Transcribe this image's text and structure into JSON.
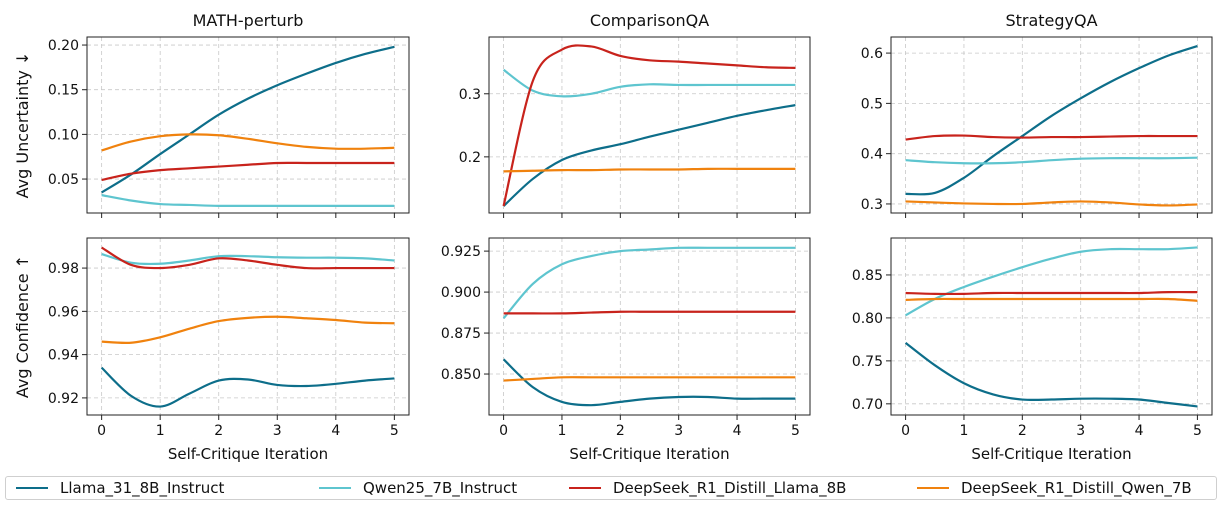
{
  "chart_data": [
    {
      "type": "line",
      "title": "MATH-perturb",
      "ylabel": "Avg Uncertainty ↓",
      "xlabel": "",
      "x": [
        0,
        0.5,
        1,
        1.5,
        2,
        2.5,
        3,
        3.5,
        4,
        4.5,
        5
      ],
      "xlim": [
        -0.25,
        5.25
      ],
      "ylim": [
        0.012,
        0.209
      ],
      "xticks": [],
      "yticks": [
        "0.05",
        "0.10",
        "0.15",
        "0.20"
      ],
      "grid": true,
      "series": [
        {
          "name": "Llama_31_8B_Instruct",
          "values": [
            0.035,
            0.055,
            0.078,
            0.1,
            0.122,
            0.14,
            0.155,
            0.168,
            0.18,
            0.19,
            0.198
          ]
        },
        {
          "name": "Qwen25_7B_Instruct",
          "values": [
            0.032,
            0.026,
            0.022,
            0.021,
            0.02,
            0.02,
            0.02,
            0.02,
            0.02,
            0.02,
            0.02
          ]
        },
        {
          "name": "DeepSeek_R1_Distill_Llama_8B",
          "values": [
            0.049,
            0.056,
            0.06,
            0.062,
            0.064,
            0.066,
            0.068,
            0.068,
            0.068,
            0.068,
            0.068
          ]
        },
        {
          "name": "DeepSeek_R1_Distill_Qwen_7B",
          "values": [
            0.082,
            0.092,
            0.098,
            0.1,
            0.099,
            0.095,
            0.09,
            0.086,
            0.084,
            0.084,
            0.085
          ]
        }
      ]
    },
    {
      "type": "line",
      "title": "ComparisonQA",
      "ylabel": "",
      "xlabel": "",
      "x": [
        0,
        0.5,
        1,
        1.5,
        2,
        2.5,
        3,
        3.5,
        4,
        4.5,
        5
      ],
      "xlim": [
        -0.25,
        5.25
      ],
      "ylim": [
        0.111,
        0.39
      ],
      "xticks": [],
      "yticks": [
        "0.2",
        "0.3"
      ],
      "grid": true,
      "series": [
        {
          "name": "Llama_31_8B_Instruct",
          "values": [
            0.122,
            0.165,
            0.195,
            0.21,
            0.22,
            0.232,
            0.243,
            0.254,
            0.265,
            0.274,
            0.282
          ]
        },
        {
          "name": "Qwen25_7B_Instruct",
          "values": [
            0.338,
            0.305,
            0.296,
            0.3,
            0.311,
            0.315,
            0.314,
            0.314,
            0.314,
            0.314,
            0.314
          ]
        },
        {
          "name": "DeepSeek_R1_Distill_Llama_8B",
          "values": [
            0.122,
            0.32,
            0.37,
            0.375,
            0.36,
            0.353,
            0.351,
            0.348,
            0.345,
            0.342,
            0.341
          ]
        },
        {
          "name": "DeepSeek_R1_Distill_Qwen_7B",
          "values": [
            0.177,
            0.178,
            0.179,
            0.179,
            0.18,
            0.18,
            0.18,
            0.181,
            0.181,
            0.181,
            0.181
          ]
        }
      ]
    },
    {
      "type": "line",
      "title": "StrategyQA",
      "ylabel": "",
      "xlabel": "",
      "x": [
        0,
        0.5,
        1,
        1.5,
        2,
        2.5,
        3,
        3.5,
        4,
        4.5,
        5
      ],
      "xlim": [
        -0.25,
        5.25
      ],
      "ylim": [
        0.282,
        0.632
      ],
      "xticks": [],
      "yticks": [
        "0.3",
        "0.4",
        "0.5",
        "0.6"
      ],
      "grid": true,
      "series": [
        {
          "name": "Llama_31_8B_Instruct",
          "values": [
            0.32,
            0.322,
            0.352,
            0.395,
            0.435,
            0.475,
            0.51,
            0.542,
            0.57,
            0.595,
            0.614
          ]
        },
        {
          "name": "Qwen25_7B_Instruct",
          "values": [
            0.387,
            0.383,
            0.381,
            0.381,
            0.383,
            0.387,
            0.39,
            0.391,
            0.391,
            0.391,
            0.392
          ]
        },
        {
          "name": "DeepSeek_R1_Distill_Llama_8B",
          "values": [
            0.428,
            0.435,
            0.436,
            0.433,
            0.432,
            0.433,
            0.433,
            0.434,
            0.435,
            0.435,
            0.435
          ]
        },
        {
          "name": "DeepSeek_R1_Distill_Qwen_7B",
          "values": [
            0.305,
            0.303,
            0.301,
            0.3,
            0.3,
            0.303,
            0.305,
            0.303,
            0.299,
            0.297,
            0.299
          ]
        }
      ]
    },
    {
      "type": "line",
      "title": "",
      "ylabel": "Avg Confidence ↑",
      "xlabel": "Self-Critique Iteration",
      "x": [
        0,
        0.5,
        1,
        1.5,
        2,
        2.5,
        3,
        3.5,
        4,
        4.5,
        5
      ],
      "xlim": [
        -0.25,
        5.25
      ],
      "ylim": [
        0.9121,
        0.9939
      ],
      "xticks": [
        "0",
        "1",
        "2",
        "3",
        "4",
        "5"
      ],
      "yticks": [
        "0.92",
        "0.94",
        "0.96",
        "0.98"
      ],
      "grid": true,
      "series": [
        {
          "name": "Llama_31_8B_Instruct",
          "values": [
            0.934,
            0.921,
            0.916,
            0.922,
            0.928,
            0.9285,
            0.926,
            0.9255,
            0.9265,
            0.928,
            0.929
          ]
        },
        {
          "name": "Qwen25_7B_Instruct",
          "values": [
            0.9865,
            0.9825,
            0.982,
            0.9835,
            0.9855,
            0.9855,
            0.985,
            0.9848,
            0.9848,
            0.9845,
            0.9835
          ]
        },
        {
          "name": "DeepSeek_R1_Distill_Llama_8B",
          "values": [
            0.9895,
            0.9815,
            0.98,
            0.9815,
            0.9845,
            0.9835,
            0.9815,
            0.98,
            0.98,
            0.98,
            0.98
          ]
        },
        {
          "name": "DeepSeek_R1_Distill_Qwen_7B",
          "values": [
            0.946,
            0.9455,
            0.948,
            0.952,
            0.9555,
            0.957,
            0.9575,
            0.9568,
            0.956,
            0.9548,
            0.9545
          ]
        }
      ]
    },
    {
      "type": "line",
      "title": "",
      "ylabel": "",
      "xlabel": "Self-Critique Iteration",
      "x": [
        0,
        0.5,
        1,
        1.5,
        2,
        2.5,
        3,
        3.5,
        4,
        4.5,
        5
      ],
      "xlim": [
        -0.25,
        5.25
      ],
      "ylim": [
        0.825,
        0.933
      ],
      "xticks": [
        "0",
        "1",
        "2",
        "3",
        "4",
        "5"
      ],
      "yticks": [
        "0.850",
        "0.875",
        "0.900",
        "0.925"
      ],
      "grid": true,
      "series": [
        {
          "name": "Llama_31_8B_Instruct",
          "values": [
            0.859,
            0.842,
            0.833,
            0.831,
            0.833,
            0.835,
            0.836,
            0.836,
            0.835,
            0.835,
            0.835
          ]
        },
        {
          "name": "Qwen25_7B_Instruct",
          "values": [
            0.884,
            0.905,
            0.917,
            0.922,
            0.925,
            0.926,
            0.927,
            0.927,
            0.927,
            0.927,
            0.927
          ]
        },
        {
          "name": "DeepSeek_R1_Distill_Llama_8B",
          "values": [
            0.887,
            0.887,
            0.887,
            0.8875,
            0.888,
            0.888,
            0.888,
            0.888,
            0.888,
            0.888,
            0.888
          ]
        },
        {
          "name": "DeepSeek_R1_Distill_Qwen_7B",
          "values": [
            0.846,
            0.847,
            0.848,
            0.848,
            0.848,
            0.848,
            0.848,
            0.848,
            0.848,
            0.848,
            0.848
          ]
        }
      ]
    },
    {
      "type": "line",
      "title": "",
      "ylabel": "",
      "xlabel": "Self-Critique Iteration",
      "x": [
        0,
        0.5,
        1,
        1.5,
        2,
        2.5,
        3,
        3.5,
        4,
        4.5,
        5
      ],
      "xlim": [
        -0.25,
        5.25
      ],
      "ylim": [
        0.687,
        0.893
      ],
      "xticks": [
        "0",
        "1",
        "2",
        "3",
        "4",
        "5"
      ],
      "yticks": [
        "0.70",
        "0.75",
        "0.80",
        "0.85"
      ],
      "grid": true,
      "series": [
        {
          "name": "Llama_31_8B_Instruct",
          "values": [
            0.771,
            0.745,
            0.724,
            0.711,
            0.705,
            0.705,
            0.706,
            0.706,
            0.705,
            0.701,
            0.697
          ]
        },
        {
          "name": "Qwen25_7B_Instruct",
          "values": [
            0.803,
            0.822,
            0.836,
            0.848,
            0.859,
            0.869,
            0.877,
            0.88,
            0.88,
            0.88,
            0.882
          ]
        },
        {
          "name": "DeepSeek_R1_Distill_Llama_8B",
          "values": [
            0.829,
            0.828,
            0.828,
            0.829,
            0.829,
            0.829,
            0.829,
            0.829,
            0.829,
            0.83,
            0.83
          ]
        },
        {
          "name": "DeepSeek_R1_Distill_Qwen_7B",
          "values": [
            0.821,
            0.822,
            0.822,
            0.822,
            0.822,
            0.822,
            0.822,
            0.822,
            0.822,
            0.822,
            0.82
          ]
        }
      ]
    }
  ],
  "legend": {
    "placement": "bottom",
    "items": [
      {
        "label": "Llama_31_8B_Instruct",
        "color": "#0d6e8a"
      },
      {
        "label": "Qwen25_7B_Instruct",
        "color": "#5ec5cf"
      },
      {
        "label": "DeepSeek_R1_Distill_Llama_8B",
        "color": "#c8231c"
      },
      {
        "label": "DeepSeek_R1_Distill_Qwen_7B",
        "color": "#f0820e"
      }
    ]
  }
}
